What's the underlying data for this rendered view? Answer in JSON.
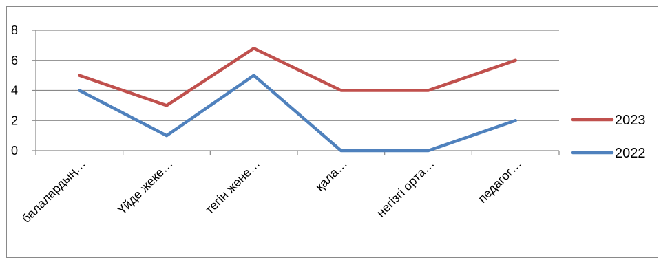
{
  "chart_data": {
    "type": "line",
    "categories": [
      "балалардың…",
      "Үйде жеке…",
      "тегін және…",
      "қала…",
      "негізгі орта…",
      "педагог…"
    ],
    "series": [
      {
        "name": "2023",
        "values": [
          5,
          3,
          6.8,
          4,
          4,
          6
        ],
        "color": "#c0504d"
      },
      {
        "name": "2022",
        "values": [
          4,
          1,
          5,
          0,
          0,
          2
        ],
        "color": "#4f81bd"
      }
    ],
    "ylim": [
      0,
      8
    ],
    "yticks": [
      0,
      2,
      4,
      6,
      8
    ],
    "grid": true,
    "legend_position": "right"
  }
}
